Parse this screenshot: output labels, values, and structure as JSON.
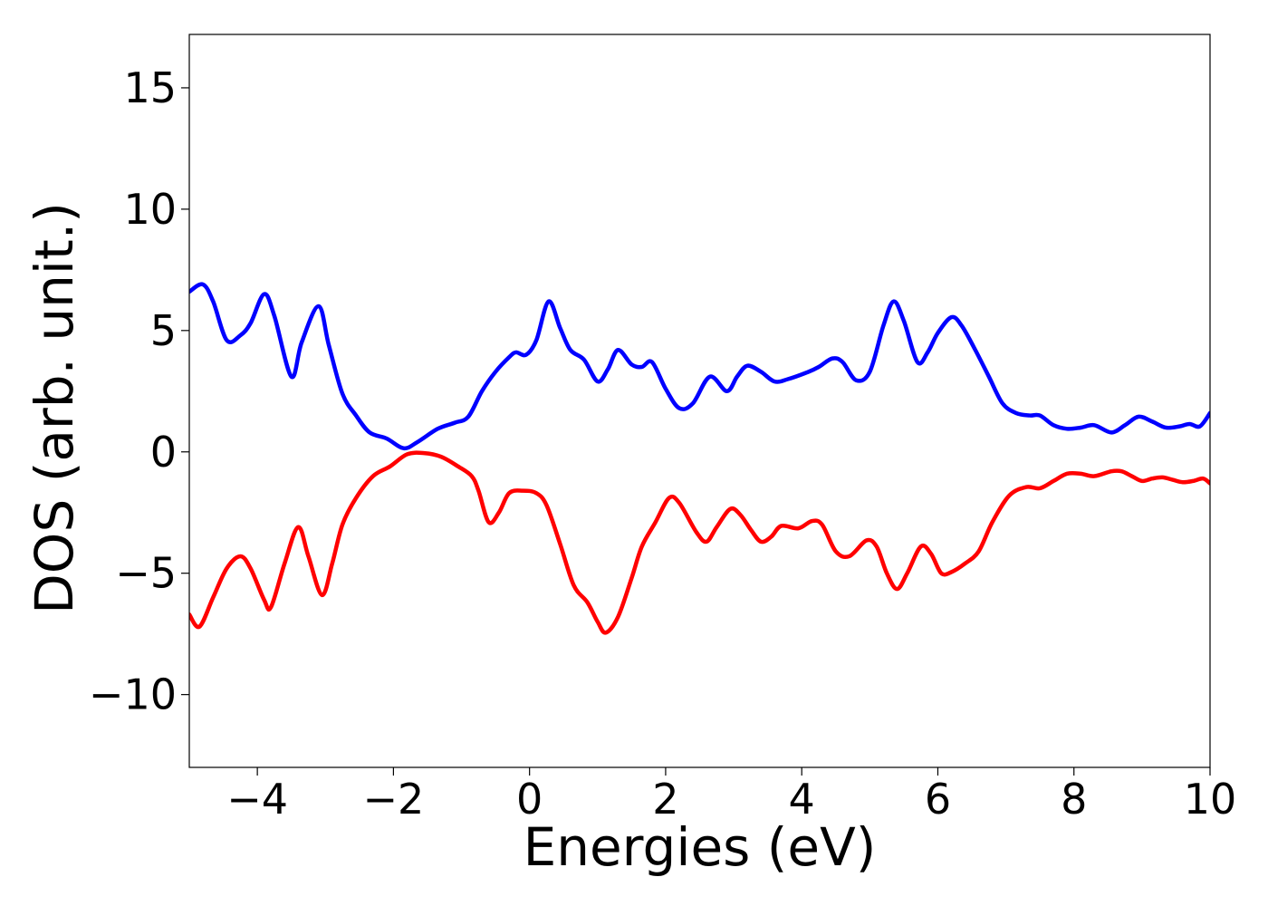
{
  "chart_data": {
    "type": "line",
    "title": "",
    "xlabel": "Energies (eV)",
    "ylabel": "DOS (arb. unit.)",
    "xlim": [
      -5,
      10
    ],
    "ylim": [
      -13,
      17.2
    ],
    "x_ticks": [
      -4,
      -2,
      0,
      2,
      4,
      6,
      8,
      10
    ],
    "x_tick_labels": [
      "−4",
      "−2",
      "0",
      "2",
      "4",
      "6",
      "8",
      "10"
    ],
    "y_ticks": [
      -10,
      -5,
      0,
      5,
      10,
      15
    ],
    "y_tick_labels": [
      "−10",
      "−5",
      "0",
      "5",
      "10",
      "15"
    ],
    "grid": false,
    "legend": "none",
    "series": [
      {
        "color": "#0000ff",
        "points": [
          [
            -5.0,
            6.6
          ],
          [
            -4.8,
            6.9
          ],
          [
            -4.65,
            6.2
          ],
          [
            -4.45,
            4.6
          ],
          [
            -4.25,
            4.8
          ],
          [
            -4.1,
            5.3
          ],
          [
            -3.9,
            6.5
          ],
          [
            -3.75,
            5.6
          ],
          [
            -3.5,
            3.1
          ],
          [
            -3.35,
            4.5
          ],
          [
            -3.1,
            6.0
          ],
          [
            -2.95,
            4.4
          ],
          [
            -2.75,
            2.4
          ],
          [
            -2.55,
            1.5
          ],
          [
            -2.35,
            0.8
          ],
          [
            -2.1,
            0.55
          ],
          [
            -1.85,
            0.15
          ],
          [
            -1.65,
            0.4
          ],
          [
            -1.35,
            0.95
          ],
          [
            -1.1,
            1.2
          ],
          [
            -0.9,
            1.45
          ],
          [
            -0.7,
            2.5
          ],
          [
            -0.5,
            3.3
          ],
          [
            -0.3,
            3.9
          ],
          [
            -0.2,
            4.1
          ],
          [
            -0.05,
            4.0
          ],
          [
            0.1,
            4.6
          ],
          [
            0.28,
            6.2
          ],
          [
            0.45,
            5.1
          ],
          [
            0.6,
            4.2
          ],
          [
            0.8,
            3.8
          ],
          [
            1.0,
            2.9
          ],
          [
            1.15,
            3.4
          ],
          [
            1.3,
            4.2
          ],
          [
            1.5,
            3.6
          ],
          [
            1.65,
            3.5
          ],
          [
            1.8,
            3.7
          ],
          [
            2.0,
            2.6
          ],
          [
            2.2,
            1.8
          ],
          [
            2.4,
            2.0
          ],
          [
            2.65,
            3.1
          ],
          [
            2.9,
            2.5
          ],
          [
            3.05,
            3.1
          ],
          [
            3.2,
            3.55
          ],
          [
            3.4,
            3.3
          ],
          [
            3.6,
            2.9
          ],
          [
            3.8,
            3.0
          ],
          [
            4.1,
            3.3
          ],
          [
            4.25,
            3.5
          ],
          [
            4.45,
            3.85
          ],
          [
            4.6,
            3.7
          ],
          [
            4.8,
            2.95
          ],
          [
            5.0,
            3.3
          ],
          [
            5.2,
            5.2
          ],
          [
            5.35,
            6.2
          ],
          [
            5.5,
            5.4
          ],
          [
            5.7,
            3.7
          ],
          [
            5.85,
            4.1
          ],
          [
            6.0,
            4.9
          ],
          [
            6.2,
            5.55
          ],
          [
            6.35,
            5.2
          ],
          [
            6.55,
            4.2
          ],
          [
            6.75,
            3.1
          ],
          [
            6.95,
            2.0
          ],
          [
            7.15,
            1.6
          ],
          [
            7.35,
            1.5
          ],
          [
            7.5,
            1.5
          ],
          [
            7.7,
            1.1
          ],
          [
            7.9,
            0.95
          ],
          [
            8.1,
            1.0
          ],
          [
            8.3,
            1.1
          ],
          [
            8.55,
            0.8
          ],
          [
            8.75,
            1.1
          ],
          [
            8.95,
            1.45
          ],
          [
            9.15,
            1.25
          ],
          [
            9.35,
            1.0
          ],
          [
            9.55,
            1.05
          ],
          [
            9.7,
            1.15
          ],
          [
            9.85,
            1.05
          ],
          [
            10.0,
            1.6
          ]
        ]
      },
      {
        "color": "#ff0000",
        "points": [
          [
            -5.0,
            -6.7
          ],
          [
            -4.85,
            -7.2
          ],
          [
            -4.65,
            -6.0
          ],
          [
            -4.45,
            -4.8
          ],
          [
            -4.25,
            -4.3
          ],
          [
            -4.1,
            -4.8
          ],
          [
            -3.9,
            -6.1
          ],
          [
            -3.8,
            -6.4
          ],
          [
            -3.6,
            -4.6
          ],
          [
            -3.4,
            -3.1
          ],
          [
            -3.25,
            -4.3
          ],
          [
            -3.05,
            -5.9
          ],
          [
            -2.9,
            -4.6
          ],
          [
            -2.75,
            -3.0
          ],
          [
            -2.55,
            -1.9
          ],
          [
            -2.3,
            -1.0
          ],
          [
            -2.05,
            -0.6
          ],
          [
            -1.8,
            -0.1
          ],
          [
            -1.55,
            -0.05
          ],
          [
            -1.3,
            -0.2
          ],
          [
            -1.05,
            -0.6
          ],
          [
            -0.85,
            -1.0
          ],
          [
            -0.75,
            -1.6
          ],
          [
            -0.6,
            -2.9
          ],
          [
            -0.45,
            -2.5
          ],
          [
            -0.3,
            -1.7
          ],
          [
            -0.1,
            -1.6
          ],
          [
            0.1,
            -1.7
          ],
          [
            0.25,
            -2.2
          ],
          [
            0.45,
            -3.8
          ],
          [
            0.65,
            -5.5
          ],
          [
            0.85,
            -6.2
          ],
          [
            1.0,
            -7.0
          ],
          [
            1.12,
            -7.45
          ],
          [
            1.3,
            -6.8
          ],
          [
            1.5,
            -5.2
          ],
          [
            1.65,
            -3.9
          ],
          [
            1.85,
            -2.9
          ],
          [
            2.05,
            -1.9
          ],
          [
            2.2,
            -2.1
          ],
          [
            2.45,
            -3.3
          ],
          [
            2.6,
            -3.7
          ],
          [
            2.75,
            -3.1
          ],
          [
            2.95,
            -2.35
          ],
          [
            3.1,
            -2.6
          ],
          [
            3.25,
            -3.2
          ],
          [
            3.4,
            -3.7
          ],
          [
            3.55,
            -3.5
          ],
          [
            3.7,
            -3.05
          ],
          [
            3.95,
            -3.15
          ],
          [
            4.15,
            -2.85
          ],
          [
            4.3,
            -3.0
          ],
          [
            4.5,
            -4.1
          ],
          [
            4.7,
            -4.3
          ],
          [
            4.95,
            -3.65
          ],
          [
            5.1,
            -3.9
          ],
          [
            5.25,
            -5.0
          ],
          [
            5.4,
            -5.65
          ],
          [
            5.55,
            -5.0
          ],
          [
            5.75,
            -3.9
          ],
          [
            5.9,
            -4.2
          ],
          [
            6.05,
            -5.0
          ],
          [
            6.2,
            -4.95
          ],
          [
            6.4,
            -4.6
          ],
          [
            6.6,
            -4.1
          ],
          [
            6.8,
            -2.9
          ],
          [
            7.05,
            -1.8
          ],
          [
            7.3,
            -1.45
          ],
          [
            7.5,
            -1.5
          ],
          [
            7.7,
            -1.2
          ],
          [
            7.9,
            -0.9
          ],
          [
            8.1,
            -0.9
          ],
          [
            8.3,
            -1.0
          ],
          [
            8.55,
            -0.8
          ],
          [
            8.7,
            -0.8
          ],
          [
            8.85,
            -1.0
          ],
          [
            9.0,
            -1.2
          ],
          [
            9.15,
            -1.1
          ],
          [
            9.3,
            -1.05
          ],
          [
            9.45,
            -1.15
          ],
          [
            9.6,
            -1.25
          ],
          [
            9.75,
            -1.2
          ],
          [
            9.9,
            -1.1
          ],
          [
            10.0,
            -1.3
          ]
        ]
      }
    ]
  }
}
